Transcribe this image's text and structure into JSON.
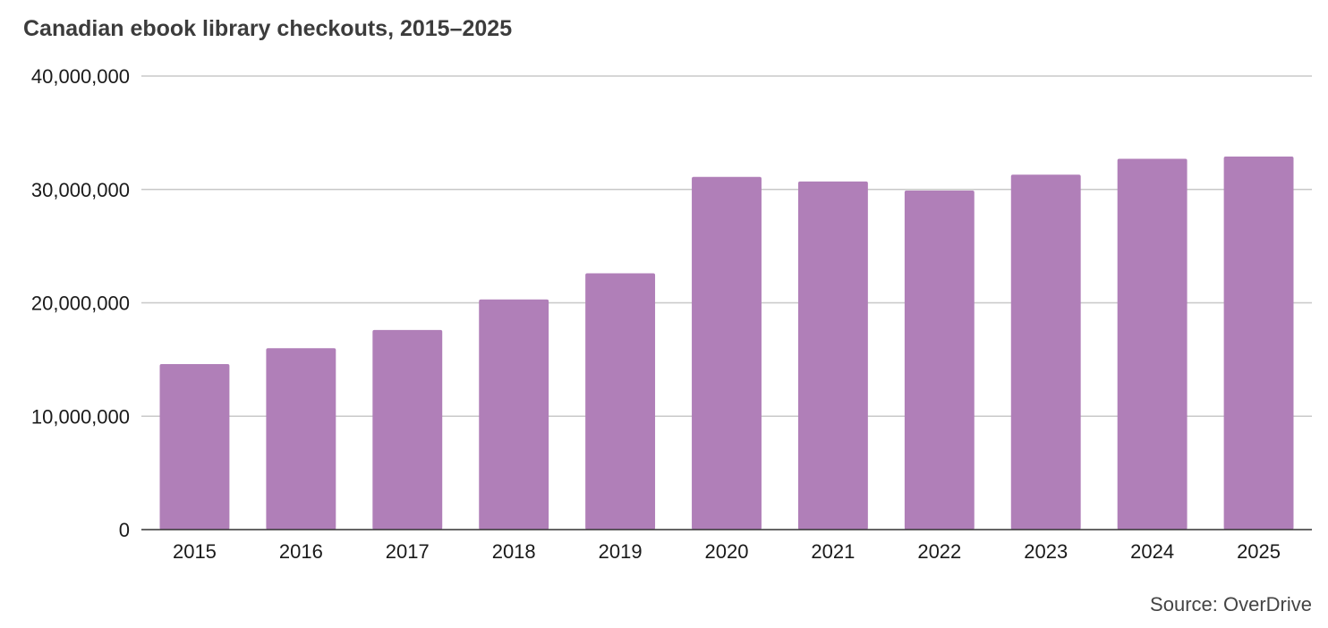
{
  "chart_data": {
    "type": "bar",
    "title": "Canadian ebook library checkouts, 2015–2025",
    "xlabel": "",
    "ylabel": "",
    "categories": [
      "2015",
      "2016",
      "2017",
      "2018",
      "2019",
      "2020",
      "2021",
      "2022",
      "2023",
      "2024",
      "2025"
    ],
    "values": [
      14600000,
      16000000,
      17600000,
      20300000,
      22600000,
      31100000,
      30700000,
      29900000,
      31300000,
      32700000,
      32900000
    ],
    "ylim": [
      0,
      40000000
    ],
    "yticks": [
      0,
      10000000,
      20000000,
      30000000,
      40000000
    ],
    "ytick_labels": [
      "0",
      "10,000,000",
      "20,000,000",
      "30,000,000",
      "40,000,000"
    ],
    "grid": true,
    "legend": "none",
    "bar_color": "#b07fb8",
    "source": "Source: OverDrive"
  }
}
